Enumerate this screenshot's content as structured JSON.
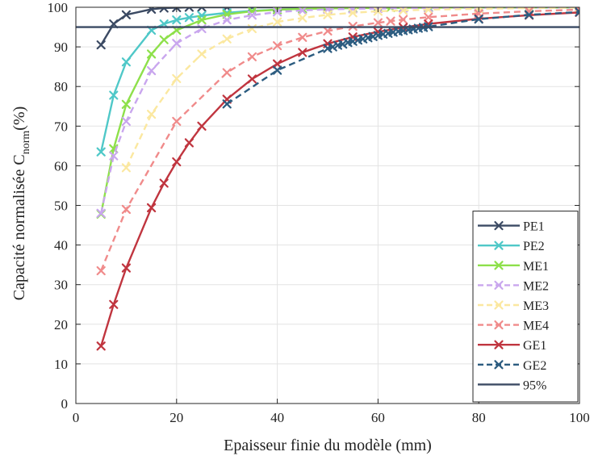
{
  "chart_data": {
    "type": "line",
    "xlabel": "Epaisseur finie du modèle (mm)",
    "ylabel": {
      "main": "Capacité normalisée C",
      "sub": "norm",
      "unit": "(%)"
    },
    "xlim": [
      0,
      100
    ],
    "ylim": [
      0,
      100
    ],
    "xticks": [
      0,
      20,
      40,
      60,
      80,
      100
    ],
    "yticks": [
      0,
      10,
      20,
      30,
      40,
      50,
      60,
      70,
      80,
      90,
      100
    ],
    "grid": true,
    "legend_position": "bottom-right",
    "series": [
      {
        "name": "PE1",
        "color": "#3b4a63",
        "dash": "solid",
        "marker": "x",
        "x": [
          5,
          7.5,
          10,
          15,
          17.5,
          20,
          22.5,
          25,
          30,
          35,
          40,
          50,
          60,
          70,
          80,
          90,
          100
        ],
        "y": [
          90.5,
          95.8,
          98.1,
          99.5,
          99.8,
          99.9,
          100,
          100,
          100,
          100,
          100,
          100,
          100,
          100,
          100,
          100,
          100
        ]
      },
      {
        "name": "PE2",
        "color": "#4fc8c8",
        "dash": "solid",
        "marker": "x",
        "x": [
          5,
          7.5,
          10,
          15,
          17.5,
          20,
          22.5,
          25,
          30,
          35,
          40,
          45,
          50,
          55,
          60,
          65,
          70,
          80,
          90,
          100
        ],
        "y": [
          63.5,
          77.8,
          86.2,
          94.2,
          95.8,
          96.8,
          97.4,
          97.9,
          98.6,
          99.1,
          99.4,
          99.6,
          99.7,
          99.8,
          99.9,
          99.9,
          100,
          100,
          100,
          100
        ]
      },
      {
        "name": "ME1",
        "color": "#8ee04b",
        "dash": "solid",
        "marker": "x",
        "x": [
          5,
          7.5,
          10,
          15,
          17.5,
          20,
          25,
          30,
          35,
          40,
          45,
          50,
          55,
          60,
          62.5,
          65,
          70,
          80,
          90,
          100
        ],
        "y": [
          47.8,
          64.3,
          75.5,
          88.2,
          91.8,
          94.2,
          96.8,
          98.2,
          99,
          99.4,
          99.6,
          99.7,
          99.8,
          99.8,
          99.9,
          99.9,
          99.9,
          100,
          100,
          100
        ]
      },
      {
        "name": "ME2",
        "color": "#c9a6ee",
        "dash": "dashed",
        "marker": "x",
        "x": [
          5,
          7.5,
          10,
          15,
          20,
          25,
          30,
          35,
          40,
          45,
          50,
          55,
          60,
          65,
          70,
          80,
          90,
          100
        ],
        "y": [
          48,
          62.5,
          71.2,
          84,
          90.9,
          94.6,
          96.8,
          98,
          98.8,
          99.2,
          99.5,
          99.6,
          99.7,
          99.8,
          99.8,
          99.9,
          99.9,
          100
        ]
      },
      {
        "name": "ME3",
        "color": "#fbe8a0",
        "dash": "dashed",
        "marker": "x",
        "x": [
          10,
          15,
          20,
          25,
          30,
          35,
          40,
          45,
          50,
          55,
          60,
          65,
          70,
          80,
          90,
          100
        ],
        "y": [
          59.5,
          73,
          82,
          88.2,
          92,
          94.6,
          96.3,
          97.3,
          98.1,
          98.6,
          99,
          99.2,
          99.4,
          99.6,
          99.8,
          99.9
        ]
      },
      {
        "name": "ME4",
        "color": "#f08b8b",
        "dash": "dashed",
        "marker": "x",
        "x": [
          5,
          10,
          20,
          30,
          35,
          40,
          45,
          50,
          55,
          60,
          62.5,
          65,
          70,
          80,
          90,
          100
        ],
        "y": [
          33.5,
          49,
          71.2,
          83.5,
          87.5,
          90.3,
          92.4,
          94,
          95.2,
          96.1,
          96.5,
          96.9,
          97.5,
          98.4,
          99,
          99.4
        ]
      },
      {
        "name": "GE1",
        "color": "#c0353f",
        "dash": "solid",
        "marker": "x",
        "x": [
          5,
          7.5,
          10,
          15,
          17.5,
          20,
          22.5,
          25,
          30,
          35,
          40,
          45,
          50,
          55,
          60,
          65,
          70,
          80,
          90,
          100
        ],
        "y": [
          14.5,
          25,
          34.2,
          49.4,
          55.6,
          61,
          65.8,
          70,
          76.8,
          81.9,
          85.7,
          88.6,
          90.8,
          92.5,
          93.8,
          94.9,
          95.8,
          97.1,
          98,
          98.7
        ]
      },
      {
        "name": "GE2",
        "color": "#2c5c80",
        "dash": "dashed",
        "marker": "x",
        "x": [
          30,
          40,
          50,
          51,
          52,
          53,
          54,
          55,
          56,
          57,
          58,
          59,
          60,
          61,
          62,
          63,
          64,
          65,
          66,
          67,
          68,
          69,
          70,
          80,
          90,
          100
        ],
        "y": [
          75.6,
          84.1,
          89.6,
          90,
          90.4,
          90.7,
          91.1,
          91.4,
          91.7,
          92,
          92.3,
          92.6,
          92.9,
          93.2,
          93.4,
          93.7,
          93.9,
          94.1,
          94.3,
          94.5,
          94.7,
          94.9,
          95.1,
          97,
          98.1,
          98.8
        ]
      },
      {
        "name": "95%",
        "color": "#3b4a63",
        "dash": "solid",
        "marker": "none",
        "x": [
          0,
          100
        ],
        "y": [
          95,
          95
        ]
      }
    ]
  }
}
